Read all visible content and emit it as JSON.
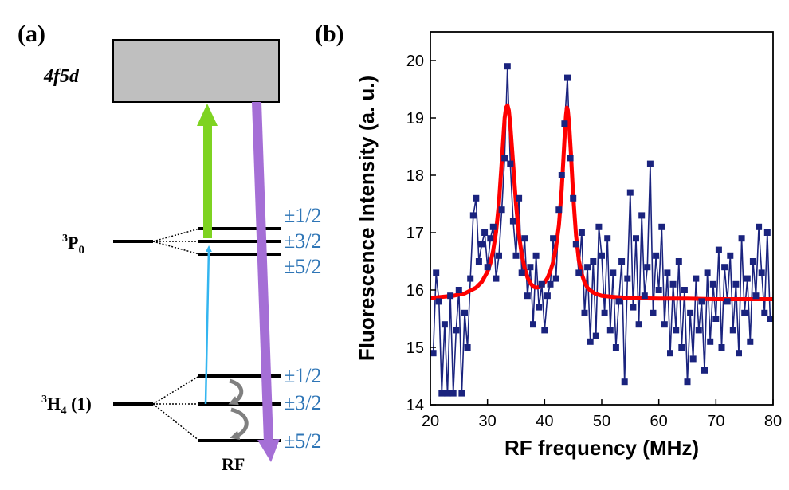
{
  "panel_a": {
    "label": "(a)",
    "excited_band": "4f5d",
    "upper_level": {
      "prefix": "3",
      "name": "P",
      "sub": "0"
    },
    "lower_level": {
      "prefix": "3",
      "name": "H",
      "sub": "4",
      "suffix": " (1)"
    },
    "upper_sublevels": [
      "±1/2",
      "±3/2",
      "±5/2"
    ],
    "lower_sublevels": [
      "±1/2",
      "±3/2",
      "±5/2"
    ],
    "rf_label": "RF",
    "colors": {
      "excitation_green": "#7ED321",
      "emission_purple": "#A56FD6",
      "probe_blue": "#33B5F0",
      "band_fill": "#BFBFBF",
      "sublevel_text": "#2E75B6",
      "rf_arrow": "#808080"
    }
  },
  "panel_b": {
    "label": "(b)"
  },
  "chart_data": {
    "type": "scatter",
    "title": "",
    "xlabel": "RF frequency (MHz)",
    "ylabel": "Fluorescence Intensity (a. u.)",
    "xlim": [
      20,
      80
    ],
    "ylim": [
      14,
      20.5
    ],
    "xticks": [
      20,
      30,
      40,
      50,
      60,
      70,
      80
    ],
    "yticks": [
      14,
      15,
      16,
      17,
      18,
      19,
      20
    ],
    "grid": false,
    "series": [
      {
        "name": "data",
        "style": "markers+line",
        "color": "#1A237E",
        "x": [
          20.5,
          21,
          21.5,
          22,
          22.5,
          23,
          23.5,
          24,
          24.5,
          25,
          25.5,
          26,
          26.5,
          27,
          27.5,
          28,
          28.5,
          29,
          29.5,
          30,
          30.5,
          31,
          31.5,
          32,
          32.5,
          33,
          33.5,
          34,
          34.5,
          35,
          35.5,
          36,
          36.5,
          37,
          37.5,
          38,
          38.5,
          39,
          39.5,
          40,
          40.5,
          41,
          41.5,
          42,
          42.5,
          43,
          43.5,
          44,
          44.5,
          45,
          45.5,
          46,
          46.5,
          47,
          47.5,
          48,
          48.5,
          49,
          49.5,
          50,
          50.5,
          51,
          51.5,
          52,
          52.5,
          53,
          53.5,
          54,
          54.5,
          55,
          55.5,
          56,
          56.5,
          57,
          57.5,
          58,
          58.5,
          59,
          59.5,
          60,
          60.5,
          61,
          61.5,
          62,
          62.5,
          63,
          63.5,
          64,
          64.5,
          65,
          65.5,
          66,
          66.5,
          67,
          67.5,
          68,
          68.5,
          69,
          69.5,
          70,
          70.5,
          71,
          71.5,
          72,
          72.5,
          73,
          73.5,
          74,
          74.5,
          75,
          75.5,
          76,
          76.5,
          77,
          77.5,
          78,
          78.5,
          79,
          79.5
        ],
        "y": [
          14.9,
          16.3,
          15.8,
          14.2,
          15.4,
          14.2,
          15.9,
          14.2,
          15.3,
          16.0,
          14.2,
          15.6,
          15.0,
          16.2,
          17.3,
          17.6,
          16.5,
          16.8,
          17.0,
          16.4,
          16.9,
          17.1,
          16.2,
          16.6,
          17.4,
          18.3,
          19.9,
          18.2,
          17.2,
          16.6,
          17.6,
          16.3,
          16.9,
          15.9,
          16.4,
          15.4,
          16.6,
          15.7,
          16.1,
          15.3,
          15.9,
          16.1,
          16.9,
          16.2,
          17.4,
          18.0,
          18.9,
          19.7,
          18.3,
          17.6,
          16.8,
          16.3,
          17.0,
          15.6,
          16.4,
          15.1,
          16.5,
          15.2,
          17.1,
          16.6,
          15.6,
          16.9,
          15.3,
          16.3,
          15.0,
          15.8,
          16.5,
          14.4,
          16.2,
          17.7,
          15.7,
          16.9,
          15.4,
          17.3,
          15.9,
          16.4,
          18.2,
          15.6,
          16.6,
          16.0,
          17.1,
          15.4,
          16.3,
          14.9,
          16.1,
          15.3,
          16.5,
          15.0,
          16.0,
          14.4,
          15.6,
          14.8,
          16.2,
          15.3,
          15.8,
          14.6,
          16.3,
          15.1,
          16.1,
          15.5,
          16.7,
          15.0,
          16.4,
          15.8,
          16.6,
          15.3,
          16.1,
          14.9,
          16.9,
          15.6,
          16.2,
          15.1,
          16.5,
          15.9,
          17.1,
          16.3,
          15.6,
          17.0,
          15.5
        ]
      },
      {
        "name": "fit",
        "style": "line",
        "color": "#FF0000",
        "peaks": [
          33.5,
          43.9
        ],
        "x": [
          20,
          22,
          24,
          26,
          28,
          29,
          30,
          30.5,
          31,
          31.5,
          32,
          32.5,
          33,
          33.25,
          33.5,
          33.75,
          34,
          34.5,
          35,
          35.5,
          36,
          36.5,
          37,
          37.5,
          38,
          38.5,
          39,
          39.5,
          40,
          40.5,
          41,
          41.5,
          42,
          42.5,
          43,
          43.5,
          43.75,
          43.9,
          44.05,
          44.3,
          44.6,
          45,
          45.5,
          46,
          46.5,
          47,
          47.5,
          48,
          49,
          50,
          52,
          55,
          60,
          65,
          70,
          75,
          80
        ],
        "y": [
          15.86,
          15.88,
          15.9,
          15.94,
          16.04,
          16.14,
          16.32,
          16.47,
          16.69,
          17.01,
          17.51,
          18.24,
          19.0,
          19.18,
          19.22,
          19.13,
          18.88,
          18.19,
          17.49,
          16.97,
          16.61,
          16.38,
          16.22,
          16.12,
          16.06,
          16.04,
          16.05,
          16.08,
          16.13,
          16.21,
          16.33,
          16.49,
          16.75,
          17.13,
          17.75,
          18.65,
          19.05,
          19.18,
          19.14,
          18.9,
          18.4,
          17.65,
          16.95,
          16.52,
          16.28,
          16.13,
          16.04,
          15.99,
          15.93,
          15.9,
          15.88,
          15.86,
          15.85,
          15.85,
          15.84,
          15.84,
          15.84
        ]
      }
    ]
  }
}
